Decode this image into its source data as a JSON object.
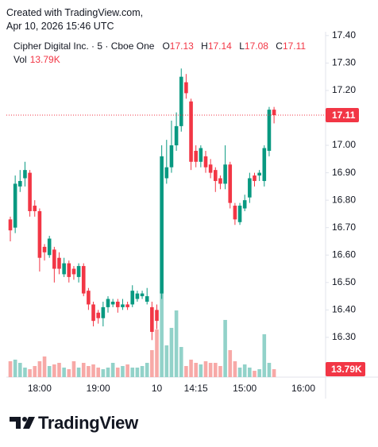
{
  "watermark": {
    "line1": "Created with TradingView.com,",
    "line2": "Apr 10, 2026 15:46 UTC"
  },
  "brand": "TradingView",
  "chart_data": {
    "type": "candlestick",
    "symbol": "Cipher Digital Inc. · 5 · Cboe One",
    "legend_fields": [
      "O",
      "H",
      "L",
      "C"
    ],
    "volume_title": "Vol",
    "volume_last_label": "13.79K",
    "up_color": "#089981",
    "down_color": "#f23645",
    "up_volume_color": "#92d2c9",
    "down_volume_color": "#f7a9a7",
    "categories": [
      null,
      null,
      null,
      null,
      null,
      null,
      "18:00",
      null,
      null,
      null,
      null,
      null,
      null,
      null,
      null,
      null,
      null,
      null,
      "19:00",
      null,
      null,
      null,
      null,
      null,
      null,
      null,
      null,
      null,
      null,
      null,
      "10",
      null,
      null,
      null,
      null,
      null,
      null,
      null,
      "14:15",
      null,
      null,
      null,
      null,
      null,
      null,
      null,
      null,
      null,
      "15:00",
      null,
      null,
      null,
      null,
      null,
      null,
      null,
      null,
      null,
      null,
      null,
      "16:00"
    ],
    "open": [
      16.73,
      16.7,
      16.85,
      16.88,
      16.9,
      16.78,
      16.76,
      16.63,
      16.6,
      16.62,
      16.59,
      16.53,
      16.57,
      16.55,
      16.52,
      16.56,
      16.47,
      16.42,
      16.39,
      16.37,
      16.41,
      16.42,
      16.43,
      16.41,
      16.42,
      16.42,
      16.44,
      16.45,
      16.43,
      16.41,
      16.4,
      16.46,
      16.88,
      16.92,
      17.0,
      17.07,
      17.23,
      17.16,
      16.98,
      16.94,
      16.96,
      16.93,
      16.91,
      16.88,
      16.86,
      16.93,
      16.78,
      16.72,
      16.77,
      16.81,
      16.89,
      16.89,
      16.87,
      16.98,
      17.13,
      null,
      null,
      null,
      null,
      null,
      null
    ],
    "high": [
      16.74,
      16.89,
      16.91,
      16.94,
      16.91,
      16.8,
      16.77,
      16.64,
      16.67,
      16.63,
      16.61,
      16.59,
      16.58,
      16.56,
      16.57,
      16.57,
      16.48,
      16.43,
      16.4,
      16.43,
      16.45,
      16.44,
      16.44,
      16.44,
      16.43,
      16.49,
      16.47,
      16.47,
      16.48,
      16.43,
      16.42,
      17.0,
      17.02,
      17.09,
      17.12,
      17.28,
      17.26,
      17.17,
      17.0,
      17.0,
      16.98,
      16.95,
      16.92,
      16.89,
      17.0,
      16.94,
      16.79,
      16.79,
      16.82,
      16.9,
      16.9,
      16.91,
      17.0,
      17.14,
      17.14,
      null,
      null,
      null,
      null,
      null,
      null
    ],
    "low": [
      16.65,
      16.68,
      16.83,
      16.85,
      16.74,
      16.74,
      16.54,
      16.58,
      16.59,
      16.5,
      16.53,
      16.52,
      16.5,
      16.51,
      16.5,
      16.45,
      16.4,
      16.34,
      16.35,
      16.34,
      16.39,
      16.41,
      16.39,
      16.4,
      16.4,
      16.41,
      16.43,
      16.44,
      16.42,
      16.29,
      16.33,
      16.44,
      16.86,
      16.9,
      16.98,
      17.05,
      17.17,
      16.91,
      16.92,
      16.92,
      16.9,
      16.88,
      16.83,
      16.84,
      16.84,
      16.77,
      16.71,
      16.71,
      16.76,
      16.79,
      16.85,
      16.87,
      16.85,
      16.96,
      17.08,
      null,
      null,
      null,
      null,
      null,
      null
    ],
    "close": [
      16.69,
      16.86,
      16.87,
      16.91,
      16.76,
      16.76,
      16.59,
      16.61,
      16.66,
      16.55,
      16.55,
      16.57,
      16.52,
      16.53,
      16.56,
      16.46,
      16.42,
      16.36,
      16.37,
      16.41,
      16.44,
      16.43,
      16.41,
      16.42,
      16.41,
      16.47,
      16.46,
      16.46,
      16.45,
      16.32,
      16.36,
      16.96,
      16.92,
      17.0,
      17.07,
      17.25,
      17.19,
      16.94,
      16.94,
      16.99,
      16.92,
      16.9,
      16.87,
      16.86,
      16.93,
      16.79,
      16.73,
      16.78,
      16.8,
      16.88,
      16.87,
      16.9,
      16.99,
      17.13,
      17.11,
      null,
      null,
      null,
      null,
      null,
      null
    ],
    "volume": [
      27600,
      30400,
      24800,
      16600,
      13800,
      19300,
      27600,
      35900,
      19300,
      22100,
      24800,
      16600,
      13800,
      27600,
      16600,
      24800,
      19300,
      22100,
      16600,
      13800,
      16600,
      24800,
      16600,
      19300,
      22100,
      16600,
      16600,
      19300,
      24800,
      46900,
      82800,
      149000,
      55200,
      85600,
      115900,
      52400,
      19300,
      30400,
      24800,
      22100,
      27600,
      24800,
      24800,
      19300,
      99400,
      46900,
      27600,
      16600,
      22100,
      16600,
      11000,
      13800,
      74500,
      24800,
      13790,
      null,
      null,
      null,
      null,
      null,
      null
    ],
    "ylim": [
      16.155,
      17.414
    ],
    "yticks": [
      {
        "value": 16.3,
        "label": "16.30"
      },
      {
        "value": 16.4,
        "label": "16.40"
      },
      {
        "value": 16.5,
        "label": "16.50"
      },
      {
        "value": 16.6,
        "label": "16.60"
      },
      {
        "value": 16.7,
        "label": "16.70"
      },
      {
        "value": 16.8,
        "label": "16.80"
      },
      {
        "value": 16.9,
        "label": "16.90"
      },
      {
        "value": 17.0,
        "label": "17.00"
      },
      {
        "value": 17.1,
        "label": "17.10"
      },
      {
        "value": 17.2,
        "label": "17.20"
      },
      {
        "value": 17.3,
        "label": "17.30"
      },
      {
        "value": 17.4,
        "label": "17.40"
      }
    ]
  }
}
